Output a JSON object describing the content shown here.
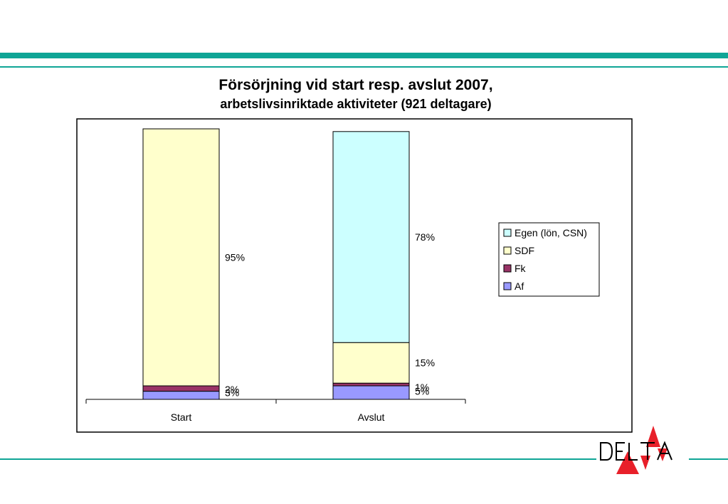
{
  "chart_data": {
    "type": "bar",
    "stacked": true,
    "title": "Försörjning vid start resp. avslut 2007,",
    "subtitle": "arbetslivsinriktade aktiviteter (921 deltagare)",
    "categories": [
      "Start",
      "Avslut"
    ],
    "series": [
      {
        "name": "Af",
        "values": [
          3,
          5
        ],
        "labels": [
          "3%",
          "5%"
        ],
        "color": "#9999ff"
      },
      {
        "name": "Fk",
        "values": [
          2,
          1
        ],
        "labels": [
          "2%",
          "1%"
        ],
        "color": "#993366"
      },
      {
        "name": "SDF",
        "values": [
          95,
          15
        ],
        "labels": [
          "95%",
          "15%"
        ],
        "color": "#ffffcc"
      },
      {
        "name": "Egen (lön, CSN)",
        "values": [
          0,
          78
        ],
        "labels": [
          "",
          "78%"
        ],
        "color": "#ccffff"
      }
    ],
    "legend_order": [
      "Egen (lön, CSN)",
      "SDF",
      "Fk",
      "Af"
    ],
    "ylim": [
      0,
      100
    ],
    "grid": false,
    "legend_position": "right"
  },
  "brand": {
    "logo_text": "DELTA",
    "accent_teal": "#0fa596",
    "logo_red": "#e8202a"
  }
}
